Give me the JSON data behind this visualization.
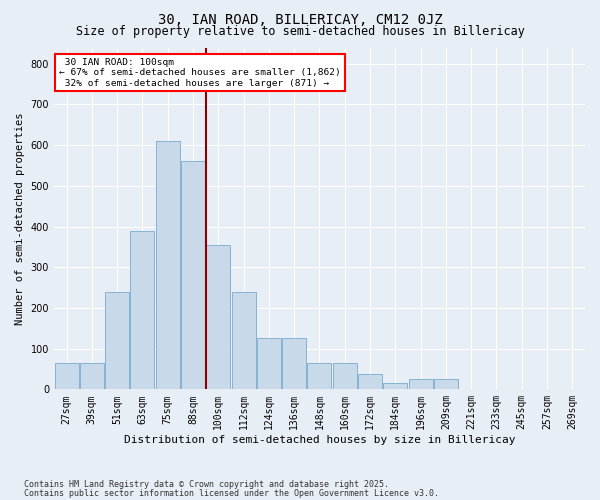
{
  "title": "30, IAN ROAD, BILLERICAY, CM12 0JZ",
  "subtitle": "Size of property relative to semi-detached houses in Billericay",
  "xlabel": "Distribution of semi-detached houses by size in Billericay",
  "ylabel": "Number of semi-detached properties",
  "categories": [
    "27sqm",
    "39sqm",
    "51sqm",
    "63sqm",
    "75sqm",
    "88sqm",
    "100sqm",
    "112sqm",
    "124sqm",
    "136sqm",
    "148sqm",
    "160sqm",
    "172sqm",
    "184sqm",
    "196sqm",
    "209sqm",
    "221sqm",
    "233sqm",
    "245sqm",
    "257sqm",
    "269sqm"
  ],
  "values": [
    65,
    65,
    240,
    390,
    610,
    560,
    355,
    240,
    125,
    125,
    65,
    65,
    37,
    15,
    25,
    25,
    0,
    0,
    0,
    0,
    0
  ],
  "bar_color": "#c8d9ea",
  "bar_edge_color": "#7aaace",
  "marker_index": 6,
  "marker_label": "30 IAN ROAD: 100sqm",
  "marker_smaller_pct": "67%",
  "marker_smaller_n": "1,862",
  "marker_larger_pct": "32%",
  "marker_larger_n": "871",
  "marker_color": "#8b0000",
  "ylim": [
    0,
    840
  ],
  "yticks": [
    0,
    100,
    200,
    300,
    400,
    500,
    600,
    700,
    800
  ],
  "background_color": "#e8eef5",
  "plot_background": "#e8eef5",
  "grid_color": "#ffffff",
  "footnote1": "Contains HM Land Registry data © Crown copyright and database right 2025.",
  "footnote2": "Contains public sector information licensed under the Open Government Licence v3.0.",
  "title_fontsize": 10,
  "subtitle_fontsize": 8.5,
  "xlabel_fontsize": 8,
  "ylabel_fontsize": 7.5,
  "tick_fontsize": 7,
  "annot_fontsize": 6.8,
  "footnote_fontsize": 6
}
